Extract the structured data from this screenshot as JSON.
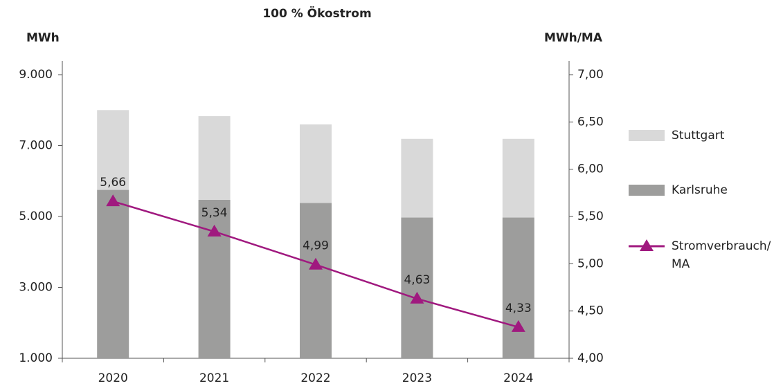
{
  "chart_data": {
    "type": "bar_line",
    "title": "100 % Ökostrom",
    "ylabel": "MWh",
    "y2label": "MWh/MA",
    "categories": [
      "2020",
      "2021",
      "2022",
      "2023",
      "2024"
    ],
    "series": [
      {
        "name": "Karlsruhe",
        "color": "#9d9d9c",
        "kind": "bar",
        "values": [
          4750,
          4470,
          4380,
          3970,
          3970
        ]
      },
      {
        "name": "Stuttgart",
        "color": "#d9d9d9",
        "kind": "bar",
        "values": [
          2250,
          2360,
          2220,
          2220,
          2220
        ]
      },
      {
        "name": "Stromverbrauch/ MA",
        "color": "#a0197f",
        "kind": "line",
        "axis": "y2",
        "values": [
          5.66,
          5.34,
          4.99,
          4.63,
          4.33
        ],
        "value_labels": [
          "5,66",
          "5,34",
          "4,99",
          "4,63",
          "4,33"
        ]
      }
    ],
    "ylim": [
      1000,
      9000
    ],
    "yticks": [
      {
        "value": 1000,
        "label": "1.000"
      },
      {
        "value": 3000,
        "label": "3.000"
      },
      {
        "value": 5000,
        "label": "5.000"
      },
      {
        "value": 7000,
        "label": "7.000"
      },
      {
        "value": 9000,
        "label": "9.000"
      }
    ],
    "y2lim": [
      4.0,
      7.0
    ],
    "y2ticks": [
      {
        "value": 4.0,
        "label": "4,00"
      },
      {
        "value": 4.5,
        "label": "4,50"
      },
      {
        "value": 5.0,
        "label": "5,00"
      },
      {
        "value": 5.5,
        "label": "5,50"
      },
      {
        "value": 6.0,
        "label": "6,00"
      },
      {
        "value": 6.5,
        "label": "6,50"
      },
      {
        "value": 7.0,
        "label": "7,00"
      }
    ],
    "grid": false,
    "legend": "right"
  }
}
